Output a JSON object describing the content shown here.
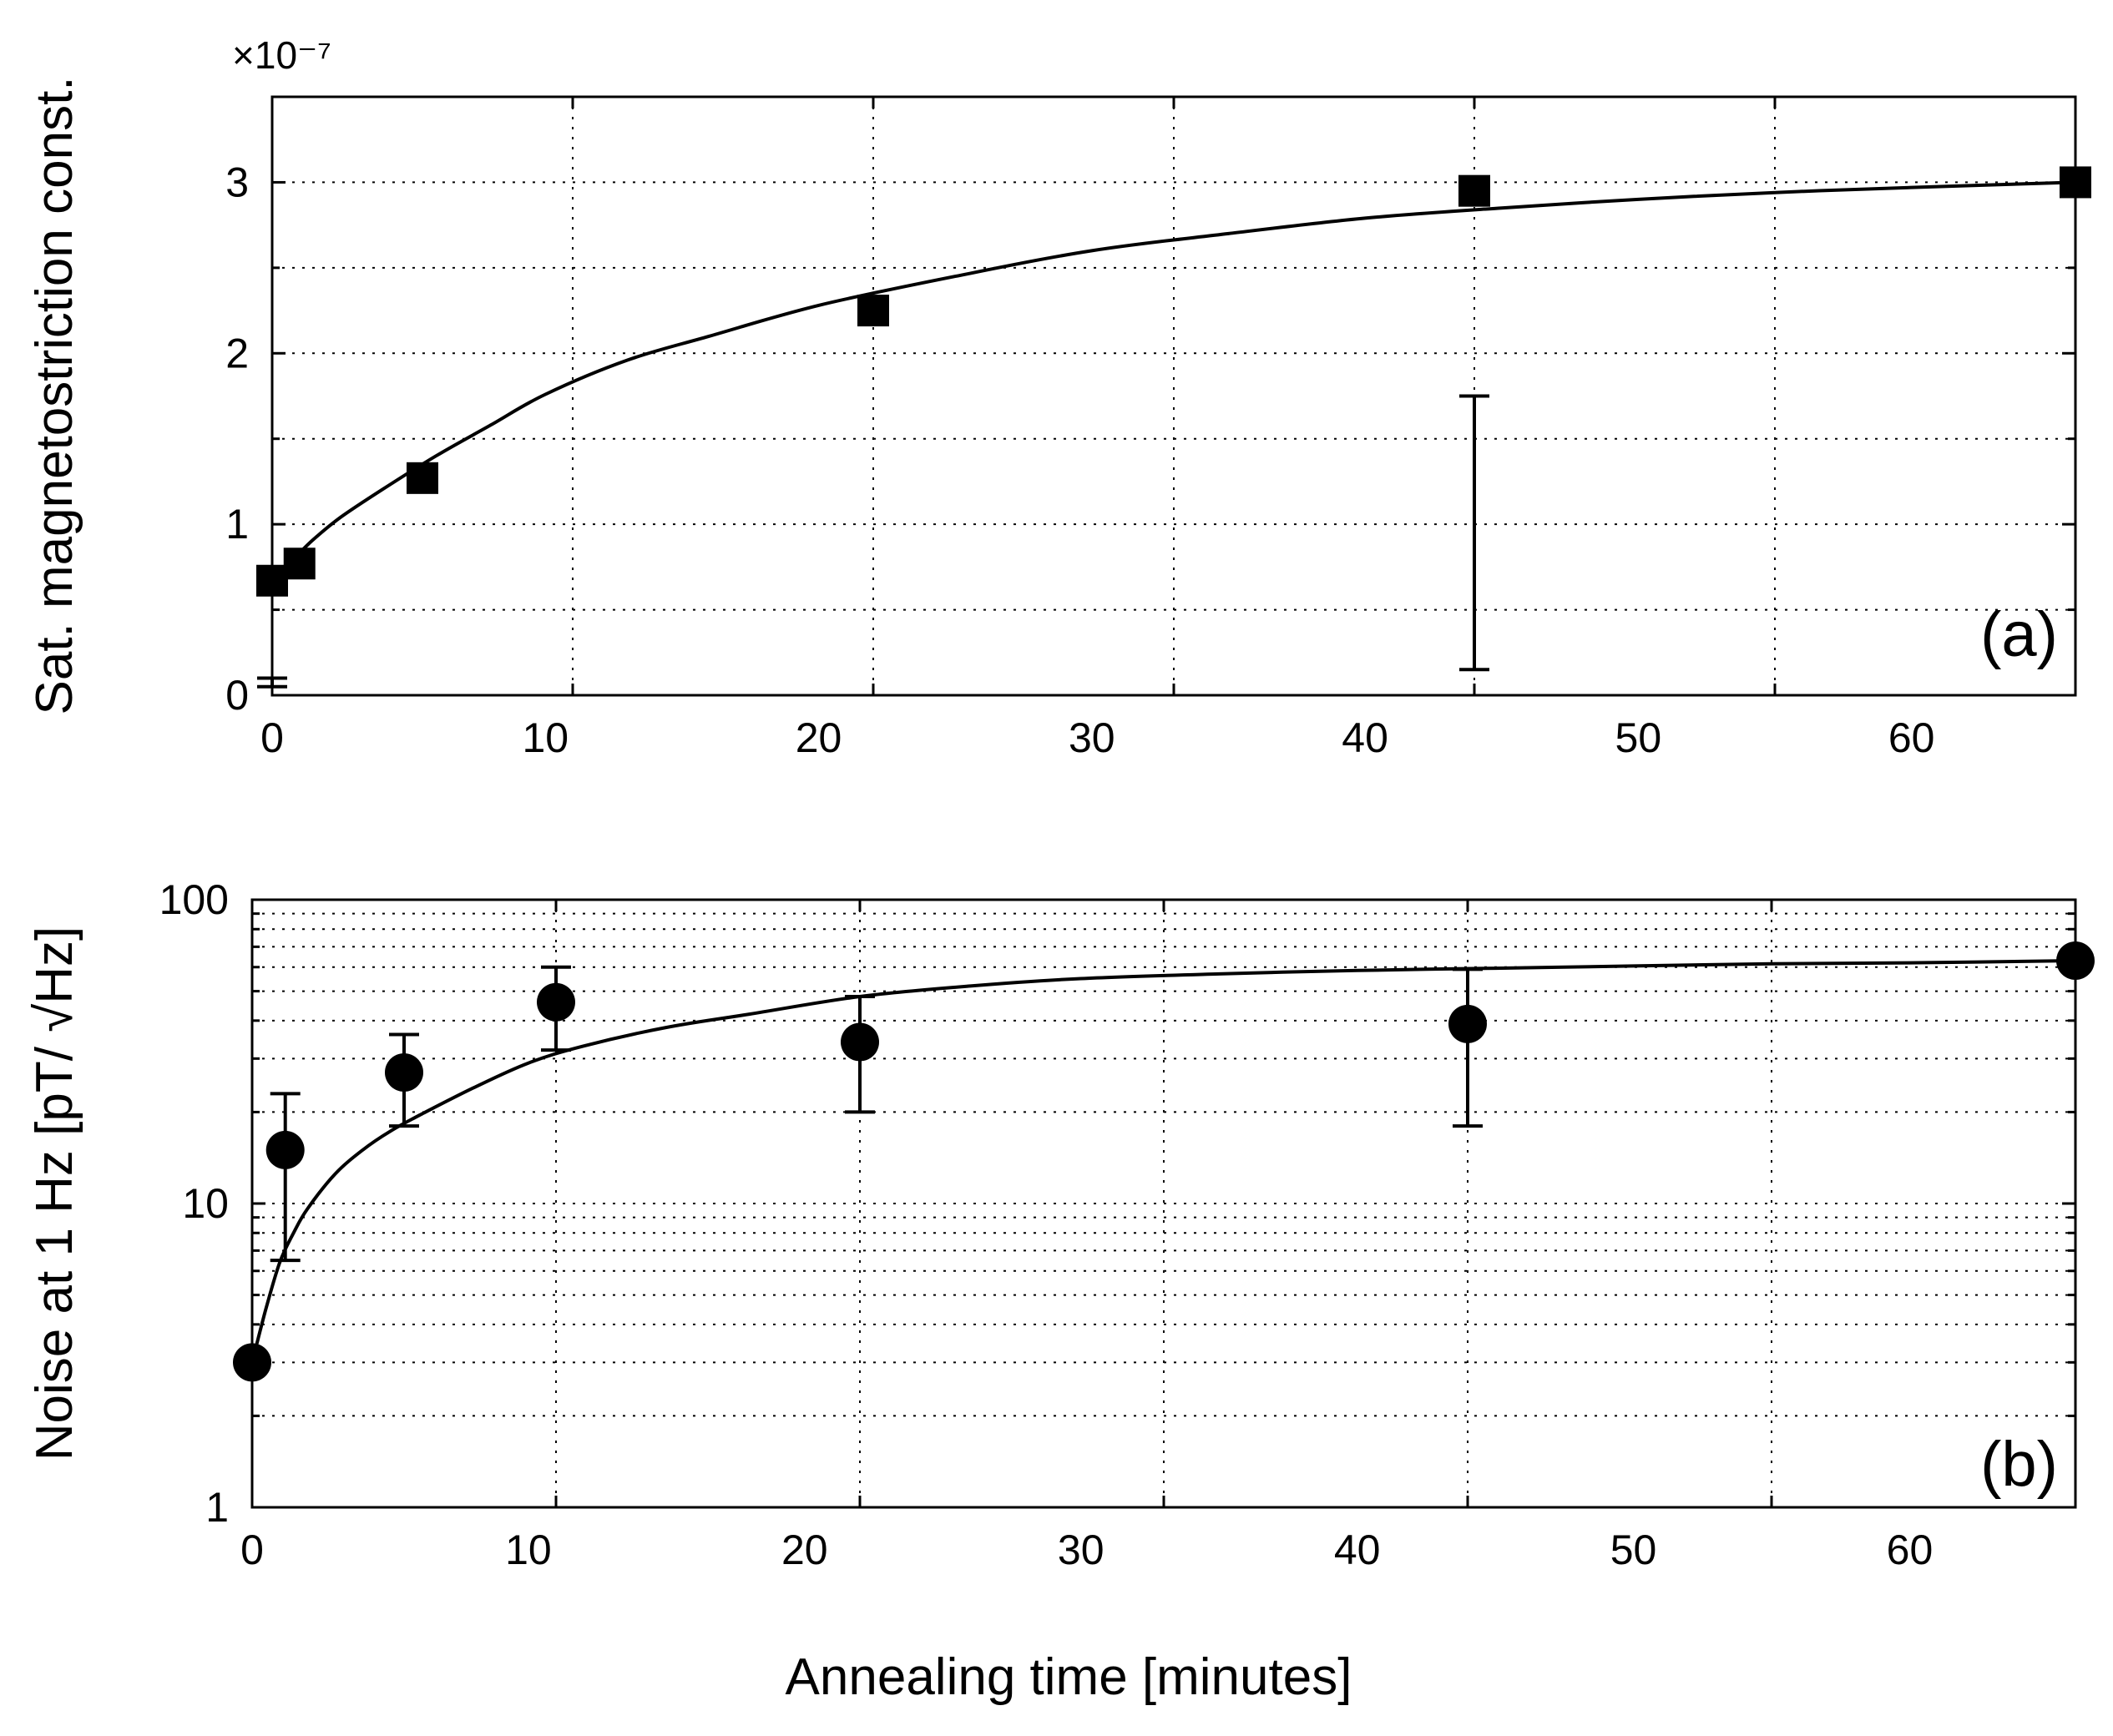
{
  "figure": {
    "xlabel": "Annealing time [minutes]"
  },
  "chart_data": [
    {
      "type": "scatter",
      "panel": "(a)",
      "ylabel": "Sat. magnetostriction const.",
      "y_scale_label": "×10⁻⁷",
      "marker": "square",
      "xlim": [
        0,
        66
      ],
      "ylim": [
        0,
        3.5
      ],
      "x_ticks": [
        0,
        10,
        20,
        30,
        40,
        50,
        60
      ],
      "y_ticks": [
        0,
        1,
        2,
        3
      ],
      "x_tick_labels": [
        "0",
        "10",
        "20",
        "30",
        "40",
        "50",
        "60"
      ],
      "y_tick_labels": [
        "0",
        "1",
        "2",
        "3"
      ],
      "x_grid": [
        0,
        11,
        22,
        33,
        44,
        55,
        66
      ],
      "y_grid": [
        0,
        0.5,
        1,
        1.5,
        2,
        2.5,
        3
      ],
      "grid": true,
      "points": [
        {
          "x": 0,
          "y": 0.67,
          "err_low": 0.1,
          "err_high": 0.05
        },
        {
          "x": 1,
          "y": 0.77,
          "err_low": 0.05,
          "err_high": 0.05
        },
        {
          "x": 5.5,
          "y": 1.27,
          "err_low": 0.13,
          "err_high": 0.13
        },
        {
          "x": 22,
          "y": 2.25,
          "err_low": 0.1,
          "err_high": 0.1
        },
        {
          "x": 44,
          "y": 2.95,
          "err_low": 1.75,
          "err_high": 0.15
        },
        {
          "x": 66,
          "y": 3.0,
          "err_low": 0.02,
          "err_high": 0.02
        }
      ],
      "fit_curve": {
        "x": [
          0.8,
          1.5,
          2.5,
          4,
          6,
          8,
          10,
          13,
          16,
          20,
          25,
          30,
          35,
          40,
          45,
          50,
          55,
          60,
          66
        ],
        "y": [
          0.8,
          0.91,
          1.04,
          1.2,
          1.4,
          1.58,
          1.76,
          1.96,
          2.1,
          2.28,
          2.45,
          2.6,
          2.7,
          2.79,
          2.85,
          2.9,
          2.94,
          2.97,
          3.0
        ]
      }
    },
    {
      "type": "scatter",
      "panel": "(b)",
      "ylabel": "Noise at 1 Hz [pT/ √Hz]",
      "marker": "circle",
      "y_scale": "log",
      "xlim": [
        0,
        66
      ],
      "ylim": [
        1,
        100
      ],
      "x_ticks": [
        0,
        10,
        20,
        30,
        40,
        50,
        60
      ],
      "y_ticks": [
        1,
        10,
        100
      ],
      "x_tick_labels": [
        "0",
        "10",
        "20",
        "30",
        "40",
        "50",
        "60"
      ],
      "y_tick_labels": [
        "1",
        "10",
        "100"
      ],
      "x_grid": [
        0,
        11,
        22,
        33,
        44,
        55,
        66
      ],
      "y_grid": [
        2,
        3,
        4,
        5,
        6,
        7,
        8,
        9,
        10,
        20,
        30,
        40,
        50,
        60,
        70,
        80,
        90
      ],
      "grid": true,
      "points": [
        {
          "x": 0,
          "y": 3.0,
          "err_low": 3.0,
          "err_high": 3.0
        },
        {
          "x": 1.2,
          "y": 15,
          "err_low": 6.5,
          "err_high": 23
        },
        {
          "x": 5.5,
          "y": 27,
          "err_low": 18,
          "err_high": 36
        },
        {
          "x": 11,
          "y": 46,
          "err_low": 32,
          "err_high": 60
        },
        {
          "x": 22,
          "y": 34,
          "err_low": 20,
          "err_high": 48
        },
        {
          "x": 44,
          "y": 39,
          "err_low": 18,
          "err_high": 59
        },
        {
          "x": 66,
          "y": 63,
          "err_low": 63,
          "err_high": 63
        }
      ],
      "fit_curve": {
        "x": [
          0,
          0.5,
          1,
          1.5,
          2,
          3,
          4,
          5,
          6,
          8,
          10,
          12,
          15,
          18,
          22,
          26,
          30,
          35,
          40,
          45,
          50,
          55,
          60,
          66
        ],
        "y": [
          3.0,
          4.5,
          6.4,
          8.0,
          9.6,
          12.5,
          15.0,
          17.3,
          19.4,
          24.0,
          29.0,
          33.0,
          38.0,
          42.0,
          48.0,
          52.0,
          55.0,
          57.0,
          58.5,
          59.5,
          60.5,
          61.5,
          62.0,
          63.0
        ]
      }
    }
  ]
}
